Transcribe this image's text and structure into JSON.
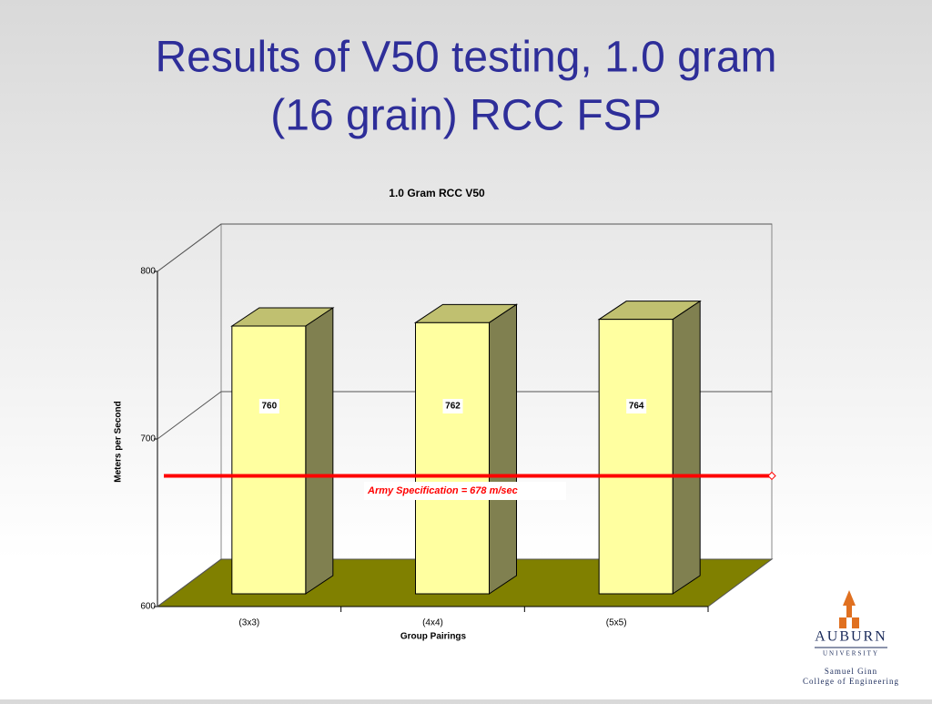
{
  "slide": {
    "title_line1": "Results of V50 testing, 1.0 gram",
    "title_line2": "(16 grain) RCC FSP"
  },
  "logo": {
    "name": "AUBURN",
    "sub": "UNIVERSITY",
    "college1": "Samuel Ginn",
    "college2": "College of Engineering"
  },
  "chart_data": {
    "type": "bar",
    "title": "1.0 Gram RCC V50",
    "categories": [
      "(3x3)",
      "(4x4)",
      "(5x5)"
    ],
    "values": [
      760,
      762,
      764
    ],
    "color": "#ffffa0",
    "x_label": "Group Pairings",
    "y_label": "Meters per Second",
    "ylim": [
      600,
      800
    ],
    "yticks": [
      600,
      700,
      800
    ],
    "grid": true,
    "floor_color": "#808000",
    "reference": {
      "value": 678,
      "label": "Army Specification = 678 m/sec",
      "color": "#ff0000"
    }
  }
}
